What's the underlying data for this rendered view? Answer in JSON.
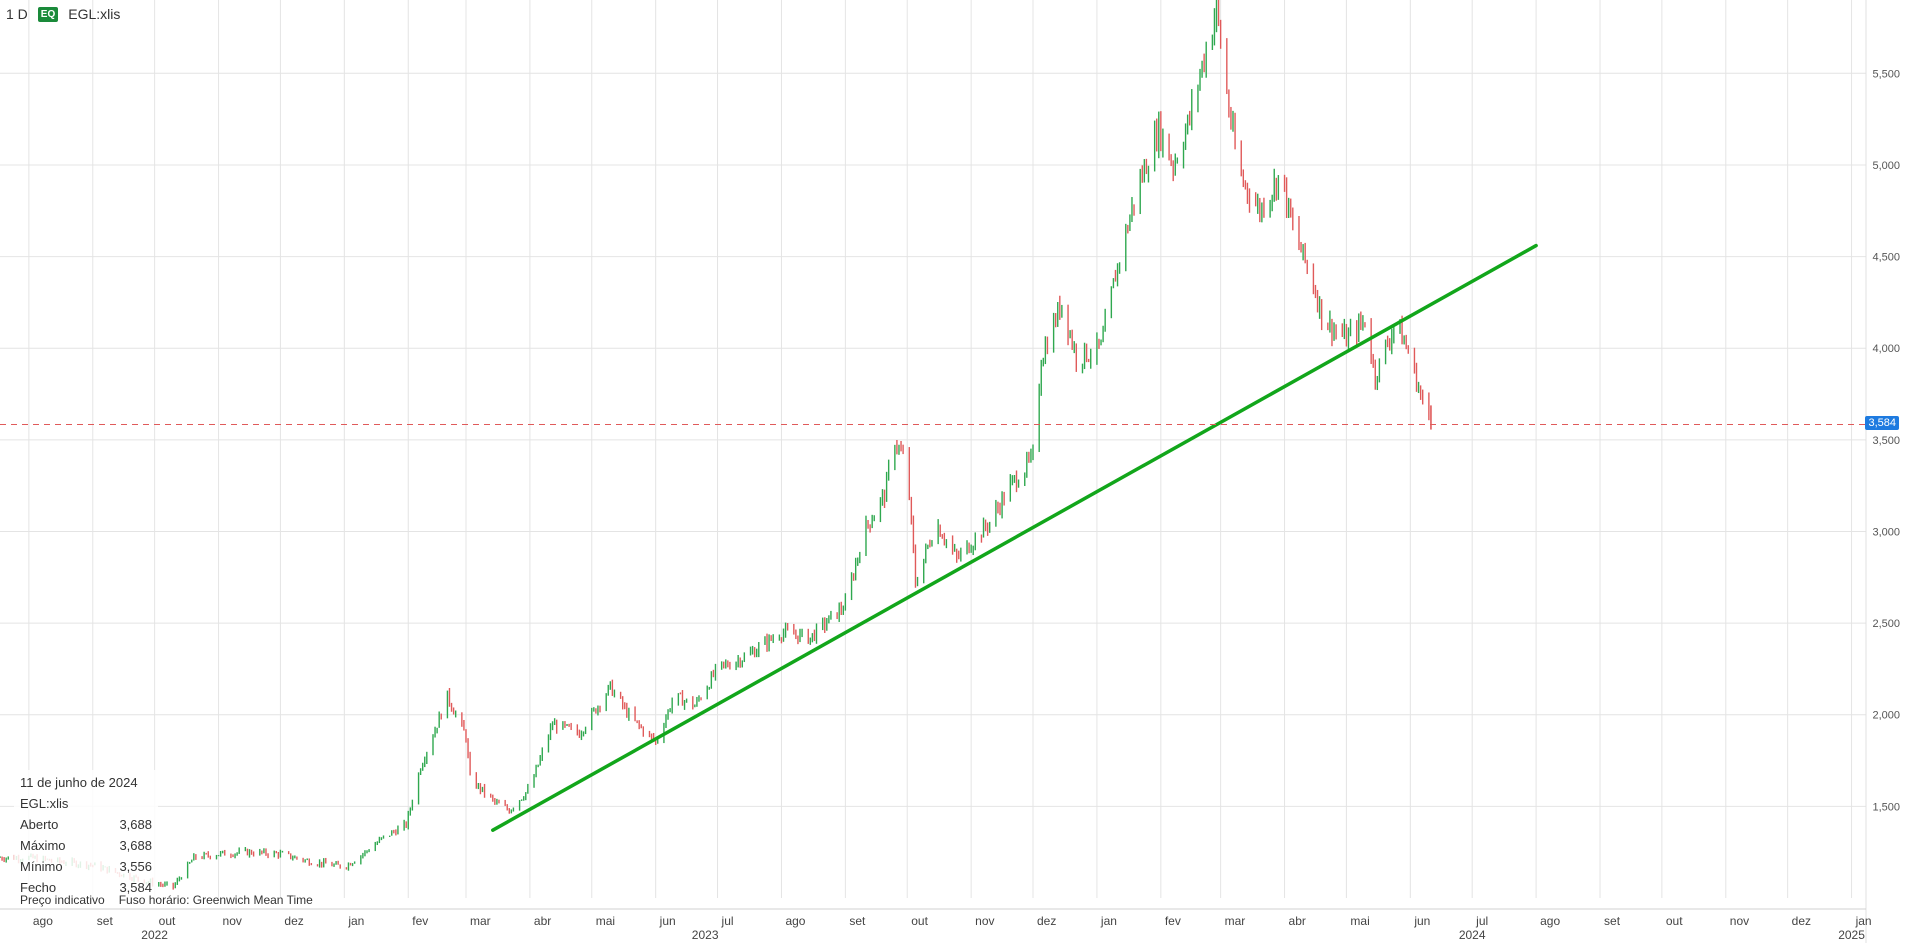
{
  "header": {
    "interval": "1 D",
    "badge": "EQ",
    "symbol": "EGL:xlis"
  },
  "info": {
    "date": "11 de junho de 2024",
    "symbol": "EGL:xlis",
    "rows": [
      {
        "label": "Aberto",
        "value": "3,688"
      },
      {
        "label": "Máximo",
        "value": "3,688"
      },
      {
        "label": "Mínimo",
        "value": "3,556"
      },
      {
        "label": "Fecho",
        "value": "3,584"
      }
    ]
  },
  "footer": {
    "price_note": "Preço indicativo",
    "timezone": "Fuso horário: Greenwich Mean Time"
  },
  "colors": {
    "up": "#2fa84f",
    "down": "#e05a5a",
    "trendline": "#12a61b",
    "price_line": "#e05a5a",
    "price_label": "#1e7be0",
    "grid": "#e4e4e4"
  },
  "chart_data": {
    "type": "candlestick",
    "ylim": [
      1000,
      5900
    ],
    "xlim": [
      "2022-07-18",
      "2025-01-08"
    ],
    "y_ticks": [
      {
        "value": 1500,
        "label": "1,500"
      },
      {
        "value": 2000,
        "label": "2,000"
      },
      {
        "value": 2500,
        "label": "2,500"
      },
      {
        "value": 3000,
        "label": "3,000"
      },
      {
        "value": 3500,
        "label": "3,500"
      },
      {
        "value": 4000,
        "label": "4,000"
      },
      {
        "value": 4500,
        "label": "4,500"
      },
      {
        "value": 5000,
        "label": "5,000"
      },
      {
        "value": 5500,
        "label": "5,500"
      }
    ],
    "month_ticks": [
      {
        "date": "2022-08-01",
        "label": "ago"
      },
      {
        "date": "2022-09-01",
        "label": "set"
      },
      {
        "date": "2022-10-01",
        "label": "out"
      },
      {
        "date": "2022-11-01",
        "label": "nov"
      },
      {
        "date": "2022-12-01",
        "label": "dez"
      },
      {
        "date": "2023-01-01",
        "label": "jan"
      },
      {
        "date": "2023-02-01",
        "label": "fev"
      },
      {
        "date": "2023-03-01",
        "label": "mar"
      },
      {
        "date": "2023-04-01",
        "label": "abr"
      },
      {
        "date": "2023-05-01",
        "label": "mai"
      },
      {
        "date": "2023-06-01",
        "label": "jun"
      },
      {
        "date": "2023-07-01",
        "label": "jul"
      },
      {
        "date": "2023-08-01",
        "label": "ago"
      },
      {
        "date": "2023-09-01",
        "label": "set"
      },
      {
        "date": "2023-10-01",
        "label": "out"
      },
      {
        "date": "2023-11-01",
        "label": "nov"
      },
      {
        "date": "2023-12-01",
        "label": "dez"
      },
      {
        "date": "2024-01-01",
        "label": "jan"
      },
      {
        "date": "2024-02-01",
        "label": "fev"
      },
      {
        "date": "2024-03-01",
        "label": "mar"
      },
      {
        "date": "2024-04-01",
        "label": "abr"
      },
      {
        "date": "2024-05-01",
        "label": "mai"
      },
      {
        "date": "2024-06-01",
        "label": "jun"
      },
      {
        "date": "2024-07-01",
        "label": "jul"
      },
      {
        "date": "2024-08-01",
        "label": "ago"
      },
      {
        "date": "2024-09-01",
        "label": "set"
      },
      {
        "date": "2024-10-01",
        "label": "out"
      },
      {
        "date": "2024-11-01",
        "label": "nov"
      },
      {
        "date": "2024-12-01",
        "label": "dez"
      },
      {
        "date": "2025-01-01",
        "label": "jan"
      }
    ],
    "year_ticks": [
      {
        "date": "2022-10-01",
        "label": "2022"
      },
      {
        "date": "2023-06-25",
        "label": "2023"
      },
      {
        "date": "2024-07-01",
        "label": "2024"
      },
      {
        "date": "2025-01-01",
        "label": "2025"
      }
    ],
    "close_series": [
      [
        "2022-07-18",
        1220
      ],
      [
        "2022-08-01",
        1220
      ],
      [
        "2022-08-15",
        1200
      ],
      [
        "2022-09-01",
        1180
      ],
      [
        "2022-09-15",
        1130
      ],
      [
        "2022-10-01",
        1080
      ],
      [
        "2022-10-10",
        1060
      ],
      [
        "2022-10-20",
        1220
      ],
      [
        "2022-11-01",
        1240
      ],
      [
        "2022-11-15",
        1250
      ],
      [
        "2022-12-01",
        1240
      ],
      [
        "2022-12-15",
        1200
      ],
      [
        "2023-01-01",
        1170
      ],
      [
        "2023-01-10",
        1240
      ],
      [
        "2023-01-20",
        1330
      ],
      [
        "2023-01-31",
        1400
      ],
      [
        "2023-02-07",
        1720
      ],
      [
        "2023-02-15",
        1950
      ],
      [
        "2023-02-20",
        2100
      ],
      [
        "2023-03-01",
        1880
      ],
      [
        "2023-03-03",
        1650
      ],
      [
        "2023-03-15",
        1520
      ],
      [
        "2023-03-22",
        1480
      ],
      [
        "2023-04-01",
        1600
      ],
      [
        "2023-04-12",
        1950
      ],
      [
        "2023-04-25",
        1900
      ],
      [
        "2023-05-10",
        2150
      ],
      [
        "2023-05-20",
        1980
      ],
      [
        "2023-06-01",
        1850
      ],
      [
        "2023-06-10",
        2100
      ],
      [
        "2023-06-20",
        2050
      ],
      [
        "2023-07-01",
        2250
      ],
      [
        "2023-07-15",
        2320
      ],
      [
        "2023-08-01",
        2450
      ],
      [
        "2023-08-15",
        2420
      ],
      [
        "2023-09-01",
        2600
      ],
      [
        "2023-09-10",
        3000
      ],
      [
        "2023-09-20",
        3200
      ],
      [
        "2023-09-25",
        3500
      ],
      [
        "2023-10-01",
        3350
      ],
      [
        "2023-10-05",
        2720
      ],
      [
        "2023-10-15",
        3050
      ],
      [
        "2023-10-25",
        2850
      ],
      [
        "2023-11-10",
        3050
      ],
      [
        "2023-11-20",
        3250
      ],
      [
        "2023-12-01",
        3400
      ],
      [
        "2023-12-05",
        3950
      ],
      [
        "2023-12-15",
        4250
      ],
      [
        "2023-12-22",
        3950
      ],
      [
        "2024-01-03",
        4000
      ],
      [
        "2024-01-10",
        4400
      ],
      [
        "2024-01-20",
        4850
      ],
      [
        "2024-01-31",
        5200
      ],
      [
        "2024-02-07",
        5000
      ],
      [
        "2024-02-15",
        5250
      ],
      [
        "2024-02-20",
        5500
      ],
      [
        "2024-02-28",
        5850
      ],
      [
        "2024-03-05",
        5300
      ],
      [
        "2024-03-10",
        4950
      ],
      [
        "2024-03-20",
        4750
      ],
      [
        "2024-03-30",
        4950
      ],
      [
        "2024-04-05",
        4650
      ],
      [
        "2024-04-15",
        4350
      ],
      [
        "2024-04-20",
        4150
      ],
      [
        "2024-05-01",
        4050
      ],
      [
        "2024-05-10",
        4150
      ],
      [
        "2024-05-15",
        3850
      ],
      [
        "2024-05-25",
        4150
      ],
      [
        "2024-06-01",
        3950
      ],
      [
        "2024-06-07",
        3700
      ],
      [
        "2024-06-11",
        3584
      ]
    ],
    "trendline": {
      "start": [
        "2023-03-14",
        1370
      ],
      "end": [
        "2024-08-01",
        4560
      ]
    },
    "last_price": {
      "value": 3584,
      "label": "3,584"
    }
  }
}
